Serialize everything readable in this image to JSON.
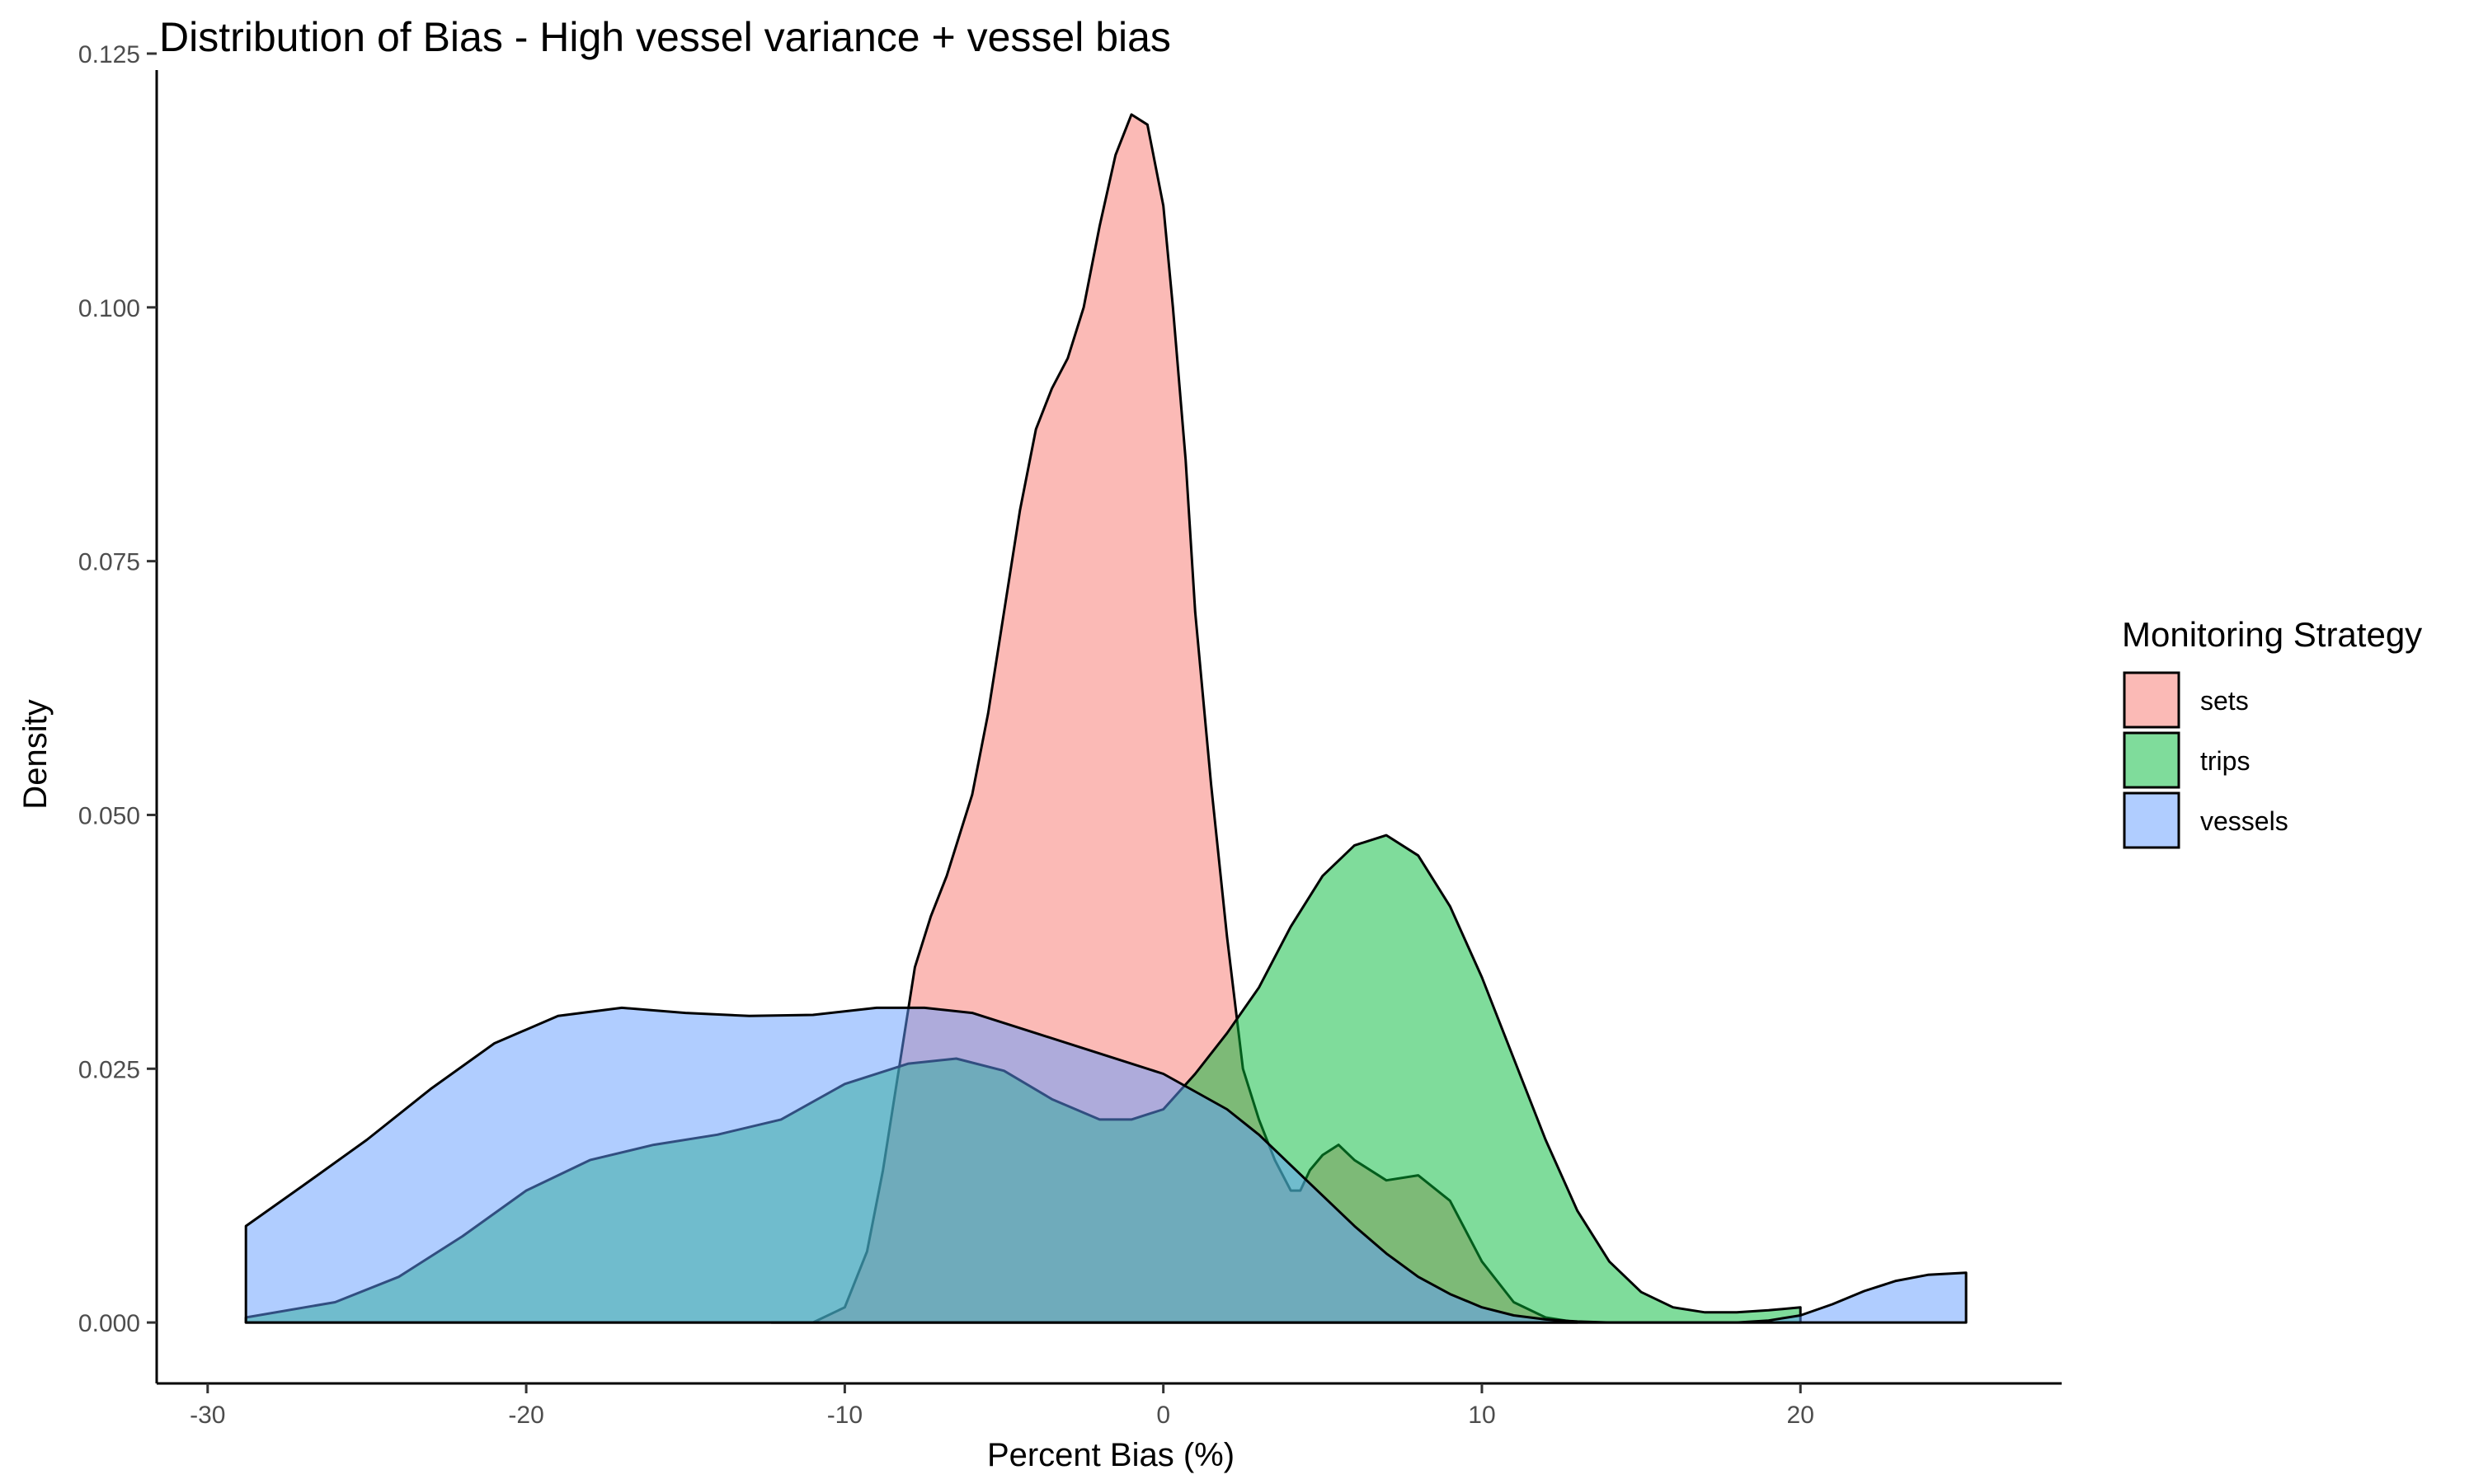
{
  "chart_data": {
    "type": "area",
    "title": "Distribution of Bias - High vessel variance + vessel bias",
    "xlabel": "Percent Bias (%)",
    "ylabel": "Density",
    "xlim": [
      -31.6,
      28.2
    ],
    "ylim": [
      -0.006,
      0.125
    ],
    "x_ticks": [
      -30,
      -20,
      -10,
      0,
      10,
      20
    ],
    "x_tick_labels": [
      "-30",
      "-20",
      "-10",
      "0",
      "10",
      "20"
    ],
    "y_ticks": [
      0,
      0.025,
      0.05,
      0.075,
      0.1,
      0.125
    ],
    "y_tick_labels": [
      "0.000",
      "0.025",
      "0.050",
      "0.075",
      "0.100",
      "0.125"
    ],
    "grid": false,
    "legend": {
      "title": "Monitoring Strategy",
      "position": "right"
    },
    "series": [
      {
        "name": "sets",
        "color": "#F8766D",
        "x": [
          -12.3,
          -11.0,
          -10.0,
          -9.3,
          -8.8,
          -8.3,
          -7.8,
          -7.3,
          -6.8,
          -6.0,
          -5.5,
          -5.0,
          -4.5,
          -4.0,
          -3.5,
          -3.0,
          -2.5,
          -2.0,
          -1.5,
          -1.0,
          -0.5,
          0.0,
          0.3,
          0.7,
          1.0,
          1.5,
          2.0,
          2.5,
          3.0,
          3.5,
          4.0,
          4.3,
          4.6,
          5.0,
          5.5,
          6.0,
          7.0,
          8.0,
          9.0,
          10.0,
          11.0,
          12.0,
          13.0
        ],
        "y": [
          0.0,
          0.0,
          0.0015,
          0.007,
          0.015,
          0.025,
          0.035,
          0.04,
          0.044,
          0.052,
          0.06,
          0.07,
          0.08,
          0.088,
          0.092,
          0.095,
          0.1,
          0.108,
          0.115,
          0.119,
          0.118,
          0.11,
          0.1,
          0.085,
          0.07,
          0.053,
          0.038,
          0.025,
          0.02,
          0.016,
          0.013,
          0.013,
          0.015,
          0.0165,
          0.0175,
          0.016,
          0.014,
          0.0145,
          0.012,
          0.006,
          0.002,
          0.0005,
          0.0
        ]
      },
      {
        "name": "trips",
        "color": "#00BA38",
        "x": [
          -28.8,
          -26.0,
          -24.0,
          -22.0,
          -20.0,
          -18.0,
          -16.0,
          -14.0,
          -12.0,
          -10.0,
          -8.0,
          -6.5,
          -5.0,
          -3.5,
          -2.0,
          -1.0,
          0.0,
          1.0,
          2.0,
          3.0,
          4.0,
          5.0,
          6.0,
          7.0,
          8.0,
          9.0,
          10.0,
          11.0,
          12.0,
          13.0,
          14.0,
          15.0,
          16.0,
          17.0,
          18.0,
          19.0,
          20.0
        ],
        "y": [
          0.0005,
          0.002,
          0.0045,
          0.0085,
          0.013,
          0.016,
          0.0175,
          0.0185,
          0.02,
          0.0235,
          0.0255,
          0.026,
          0.0248,
          0.022,
          0.02,
          0.02,
          0.021,
          0.0245,
          0.0285,
          0.033,
          0.039,
          0.044,
          0.047,
          0.048,
          0.046,
          0.041,
          0.034,
          0.026,
          0.018,
          0.011,
          0.006,
          0.003,
          0.0015,
          0.001,
          0.001,
          0.0012,
          0.0015
        ]
      },
      {
        "name": "vessels",
        "color": "#619CFF",
        "x": [
          -28.8,
          -27.0,
          -25.0,
          -23.0,
          -21.0,
          -19.0,
          -17.0,
          -15.0,
          -13.0,
          -11.0,
          -9.0,
          -7.5,
          -6.0,
          -4.0,
          -2.0,
          0.0,
          2.0,
          3.0,
          4.0,
          5.0,
          6.0,
          7.0,
          8.0,
          9.0,
          10.0,
          11.0,
          12.0,
          13.0,
          14.0,
          15.0,
          16.0,
          17.0,
          18.0,
          19.0,
          20.0,
          21.0,
          22.0,
          23.0,
          24.0,
          25.2
        ],
        "y": [
          0.0095,
          0.0135,
          0.018,
          0.023,
          0.0275,
          0.0302,
          0.031,
          0.0305,
          0.0302,
          0.0303,
          0.031,
          0.031,
          0.0305,
          0.0285,
          0.0265,
          0.0245,
          0.021,
          0.0185,
          0.0155,
          0.0125,
          0.0095,
          0.0068,
          0.0045,
          0.0028,
          0.0015,
          0.0007,
          0.0003,
          0.0001,
          0.0,
          0.0,
          0.0,
          0.0,
          0.0,
          0.0002,
          0.0007,
          0.0018,
          0.0031,
          0.0041,
          0.0047,
          0.0049
        ]
      }
    ]
  }
}
